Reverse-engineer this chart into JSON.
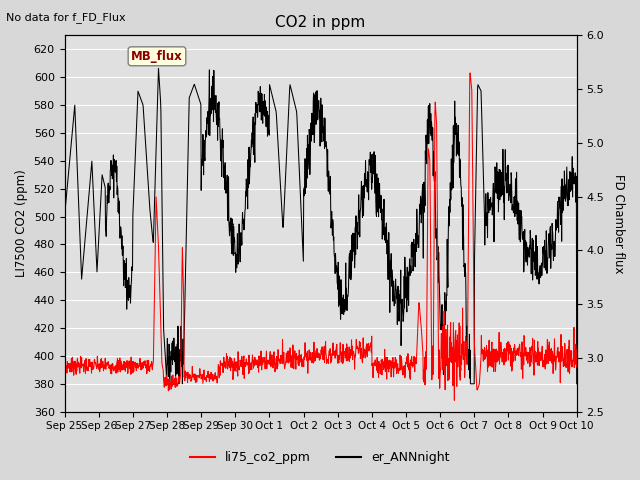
{
  "title": "CO2 in ppm",
  "ylabel_left": "LI7500 CO2 (ppm)",
  "ylabel_right": "FD Chamber flux",
  "top_left_text": "No data for f_FD_Flux",
  "mb_flux_label": "MB_flux",
  "ylim_left": [
    360,
    630
  ],
  "ylim_right": [
    2.5,
    6.0
  ],
  "yticks_left": [
    360,
    380,
    400,
    420,
    440,
    460,
    480,
    500,
    520,
    540,
    560,
    580,
    600,
    620
  ],
  "yticks_right": [
    2.5,
    3.0,
    3.5,
    4.0,
    4.5,
    5.0,
    5.5,
    6.0
  ],
  "xtick_labels": [
    "Sep 25",
    "Sep 26",
    "Sep 27",
    "Sep 28",
    "Sep 29",
    "Sep 30",
    "Oct 1",
    "Oct 2",
    "Oct 3",
    "Oct 4",
    "Oct 5",
    "Oct 6",
    "Oct 7",
    "Oct 8",
    "Oct 9",
    "Oct 10"
  ],
  "legend_labels": [
    "li75_co2_ppm",
    "er_ANNnight"
  ],
  "legend_colors": [
    "red",
    "black"
  ],
  "fig_facecolor": "#d8d8d8",
  "plot_facecolor": "#e0e0e0",
  "line1_color": "red",
  "line2_color": "black",
  "grid_color": "white"
}
